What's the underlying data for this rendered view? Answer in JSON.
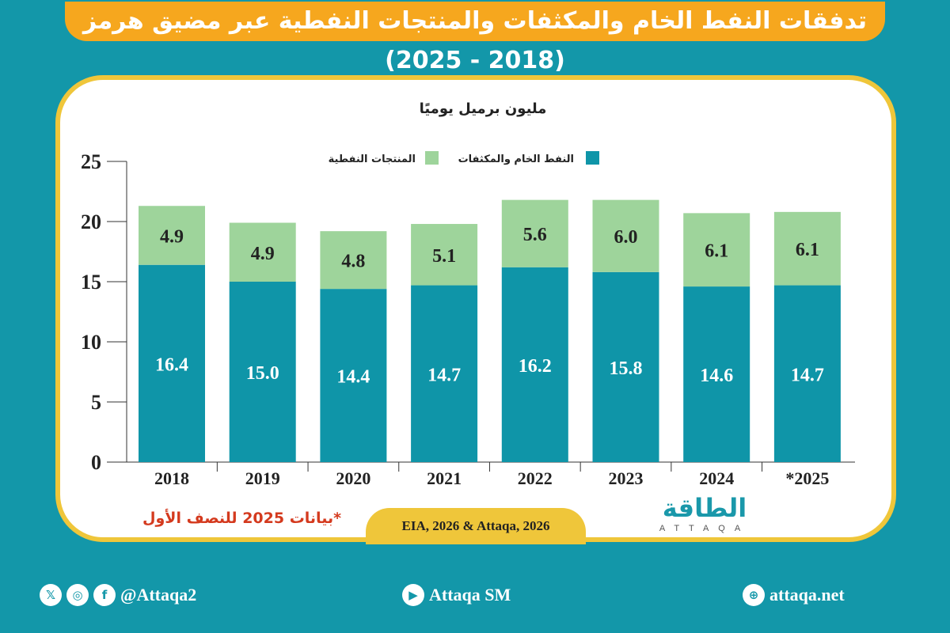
{
  "title": "تدفقات النفط الخام والمكثفات والمنتجات النفطية عبر مضيق هرمز (2018 - 2025)",
  "chart_data": {
    "type": "bar",
    "stacked": true,
    "unit_label": "مليون برميل يوميًا",
    "categories": [
      "2018",
      "2019",
      "2020",
      "2021",
      "2022",
      "2023",
      "2024",
      "*2025"
    ],
    "series": [
      {
        "name": "النفط الخام والمكثفات",
        "color": "#0f95a8",
        "values": [
          16.4,
          15.0,
          14.4,
          14.7,
          16.2,
          15.8,
          14.6,
          14.7
        ]
      },
      {
        "name": "المنتجات النفطية",
        "color": "#9ed49b",
        "values": [
          4.9,
          4.9,
          4.8,
          5.1,
          5.6,
          6.0,
          6.1,
          6.1
        ]
      }
    ],
    "yticks": [
      0,
      5,
      10,
      15,
      20,
      25
    ],
    "ylim": [
      0,
      25
    ],
    "legend": "top-right",
    "grid": false
  },
  "note": "*بيانات 2025 للنصف الأول",
  "source": "EIA, 2026 & Attaqa, 2026",
  "logo": {
    "ar": "الطاقة",
    "en": "ATTAQA"
  },
  "footer": {
    "social_handle": "@Attaqa2",
    "youtube": "Attaqa SM",
    "website": "attaqa.net",
    "icons": [
      "x-icon",
      "instagram-icon",
      "facebook-icon",
      "youtube-icon",
      "globe-icon"
    ]
  }
}
